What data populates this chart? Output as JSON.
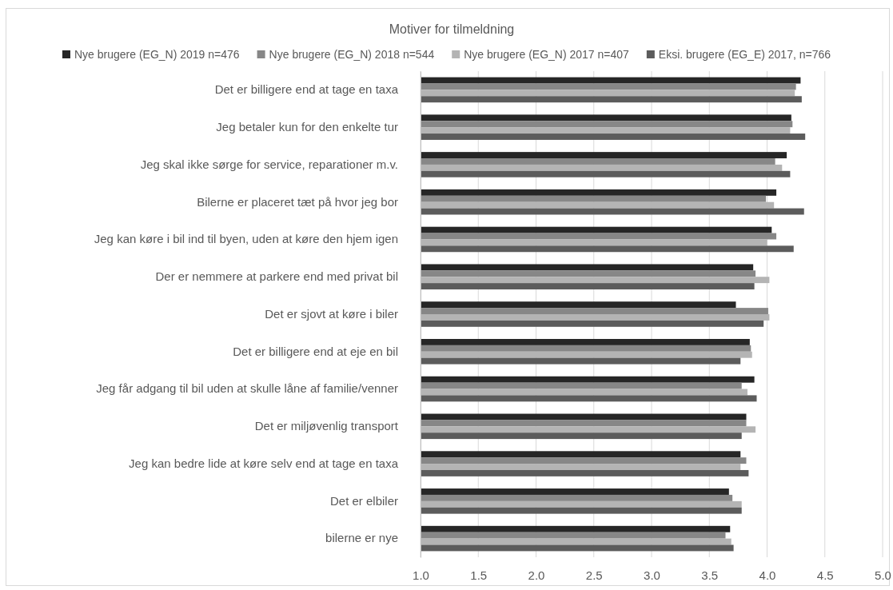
{
  "chart_data": {
    "type": "bar",
    "orientation": "horizontal",
    "title": "Motiver for tilmeldning",
    "categories": [
      "Det er billigere end at tage en taxa",
      "Jeg betaler kun for den enkelte tur",
      "Jeg skal ikke sørge for service, reparationer m.v.",
      "Bilerne er placeret tæt på hvor jeg bor",
      "Jeg kan køre i bil ind til byen, uden at køre den hjem igen",
      "Der er nemmere at parkere end med privat bil",
      "Det er sjovt at køre i biler",
      "Det er billigere end at eje en bil",
      "Jeg får adgang til bil uden at skulle låne af familie/venner",
      "Det er miljøvenlig transport",
      "Jeg kan bedre lide at køre selv end at tage en taxa",
      "Det er elbiler",
      "bilerne er nye"
    ],
    "series": [
      {
        "name": "Nye brugere (EG_N) 2019 n=476",
        "color": "#262626",
        "values": [
          4.29,
          4.21,
          4.17,
          4.08,
          4.04,
          3.88,
          3.73,
          3.85,
          3.89,
          3.82,
          3.77,
          3.67,
          3.68
        ]
      },
      {
        "name": "Nye brugere (EG_N) 2018 n=544",
        "color": "#878787",
        "values": [
          4.25,
          4.22,
          4.07,
          3.99,
          4.08,
          3.9,
          4.01,
          3.86,
          3.78,
          3.82,
          3.82,
          3.7,
          3.64
        ]
      },
      {
        "name": "Nye brugere (EG_N) 2017 n=407",
        "color": "#b4b4b4",
        "values": [
          4.24,
          4.2,
          4.13,
          4.06,
          4.0,
          4.02,
          4.02,
          3.87,
          3.83,
          3.9,
          3.77,
          3.78,
          3.69
        ]
      },
      {
        "name": "Eksi. brugere (EG_E) 2017, n=766",
        "color": "#5c5c5c",
        "values": [
          4.3,
          4.33,
          4.2,
          4.32,
          4.23,
          3.89,
          3.97,
          3.77,
          3.91,
          3.78,
          3.84,
          3.78,
          3.71
        ]
      }
    ],
    "xlim": [
      1,
      5
    ],
    "xticks": [
      {
        "value": 1,
        "label": "1.0"
      },
      {
        "value": 1.5,
        "label": "1.5"
      },
      {
        "value": 2,
        "label": "2.0"
      },
      {
        "value": 2.5,
        "label": "2.5"
      },
      {
        "value": 3,
        "label": "3.0"
      },
      {
        "value": 3.5,
        "label": "3.5"
      },
      {
        "value": 4,
        "label": "4.0"
      },
      {
        "value": 4.5,
        "label": "4.5"
      },
      {
        "value": 5,
        "label": "5.0"
      }
    ],
    "grid": "x",
    "legend": "top"
  }
}
